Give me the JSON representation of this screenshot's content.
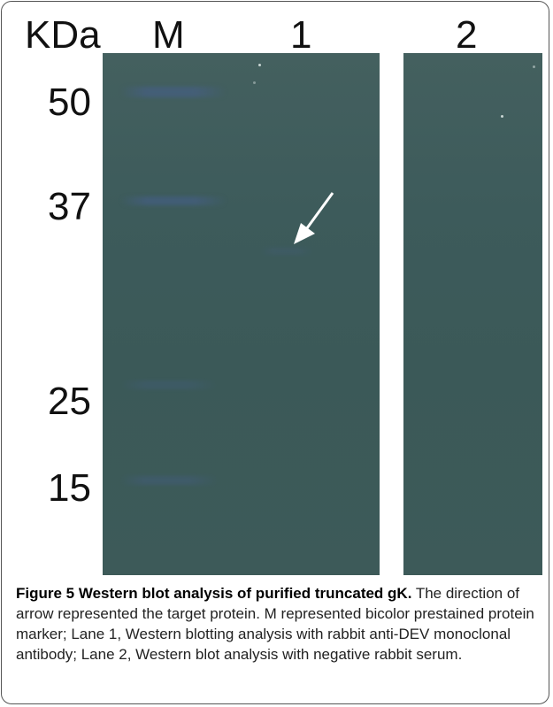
{
  "figure": {
    "unit_label": "KDa",
    "lanes": [
      "M",
      "1",
      "2"
    ],
    "markers": [
      "50",
      "37",
      "25",
      "15"
    ],
    "caption_title": "Figure 5 Western blot analysis of purified truncated gK.",
    "caption_body": " The direction of arrow represented the target protein. M represented bicolor prestained protein marker; Lane 1, Western blotting analysis with rabbit anti-DEV monoclonal antibody; Lane 2, Western blot analysis with negative rabbit serum."
  }
}
